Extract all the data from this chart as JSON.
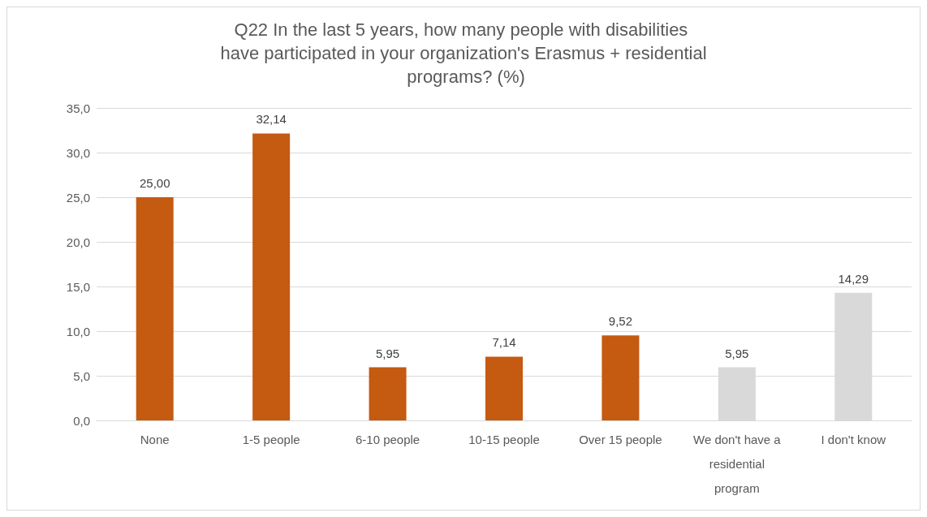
{
  "chart_data": {
    "type": "bar",
    "title": "Q22 In the last 5 years, how many people with disabilities have participated in your organization's Erasmus + residential programs? (%)",
    "categories": [
      "None",
      "1-5 people",
      "6-10 people",
      "10-15 people",
      "Over 15 people",
      "We don't have a residential program",
      "I don't know"
    ],
    "values": [
      25.0,
      32.14,
      5.95,
      7.14,
      9.52,
      5.95,
      14.29
    ],
    "colors": [
      "#c55a11",
      "#c55a11",
      "#c55a11",
      "#c55a11",
      "#c55a11",
      "#d9d9d9",
      "#d9d9d9"
    ],
    "value_labels": [
      "25,00",
      "32,14",
      "5,95",
      "7,14",
      "9,52",
      "5,95",
      "14,29"
    ],
    "ylim": [
      0,
      35
    ],
    "yticks": [
      {
        "value": 0,
        "label": "0,0"
      },
      {
        "value": 5,
        "label": "5,0"
      },
      {
        "value": 10,
        "label": "10,0"
      },
      {
        "value": 15,
        "label": "15,0"
      },
      {
        "value": 20,
        "label": "20,0"
      },
      {
        "value": 25,
        "label": "25,0"
      },
      {
        "value": 30,
        "label": "30,0"
      },
      {
        "value": 35,
        "label": "35,0"
      }
    ],
    "grid": "y"
  }
}
